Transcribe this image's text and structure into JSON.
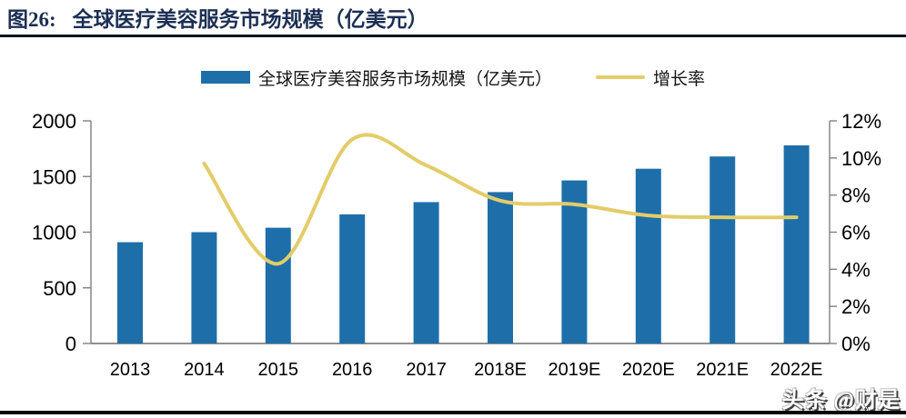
{
  "figure": {
    "title_prefix": "图26:",
    "title": "全球医疗美容服务市场规模（亿美元）",
    "watermark": "头条 @财是"
  },
  "legend": {
    "items": [
      {
        "label": "全球医疗美容服务市场规模（亿美元）",
        "marker": "bar-swatch",
        "color": "#1E6FA9"
      },
      {
        "label": "增长率",
        "marker": "line-swatch",
        "color": "#E3CC69"
      }
    ]
  },
  "colors": {
    "bar": "#1E6FA9",
    "line": "#E3CC69",
    "axis": "#7f7f7f",
    "tick_text": "#000000",
    "title": "#1c2f54"
  },
  "chart_data": {
    "type": "bar",
    "subtype": "bar-with-line-dual-axis",
    "title": "全球医疗美容服务市场规模（亿美元）",
    "categories": [
      "2013",
      "2014",
      "2015",
      "2016",
      "2017",
      "2018E",
      "2019E",
      "2020E",
      "2021E",
      "2022E"
    ],
    "series": [
      {
        "name": "全球医疗美容服务市场规模（亿美元）",
        "kind": "bar",
        "axis": "left",
        "color": "#1E6FA9",
        "values": [
          910,
          1000,
          1040,
          1160,
          1270,
          1360,
          1465,
          1570,
          1680,
          1780
        ]
      },
      {
        "name": "增长率",
        "kind": "line",
        "axis": "right",
        "color": "#E3CC69",
        "values": [
          null,
          9.7,
          4.3,
          11.0,
          9.6,
          7.7,
          7.5,
          6.9,
          6.8,
          6.8
        ],
        "unit": "%"
      }
    ],
    "left_axis": {
      "range": [
        0,
        2000
      ],
      "step": 500,
      "tick_labels": [
        "2000",
        "1500",
        "1000",
        "500",
        "0"
      ]
    },
    "right_axis": {
      "range": [
        0,
        12
      ],
      "step": 2,
      "tick_labels": [
        "12%",
        "10%",
        "8%",
        "6%",
        "4%",
        "2%",
        "0%"
      ]
    },
    "grid": false,
    "legend_position": "top"
  }
}
